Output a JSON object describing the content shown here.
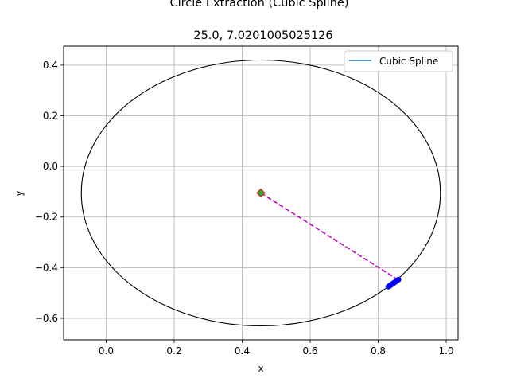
{
  "chart_data": {
    "type": "scatter",
    "title": "Circle Extraction (Cubic Spline)",
    "subtitle": "25.0, 7.0201005025126",
    "xlabel": "x",
    "ylabel": "y",
    "xlim": [
      -0.125,
      1.035
    ],
    "ylim": [
      -0.685,
      0.475
    ],
    "xticks": [
      0.0,
      0.2,
      0.4,
      0.6,
      0.8,
      1.0
    ],
    "xtick_labels": [
      "0.0",
      "0.2",
      "0.4",
      "0.6",
      "0.8",
      "1.0"
    ],
    "yticks": [
      0.4,
      0.2,
      0.0,
      -0.2,
      -0.4,
      -0.6
    ],
    "ytick_labels": [
      "0.4",
      "0.2",
      "0.0",
      "−0.2",
      "−0.4",
      "−0.6"
    ],
    "grid": true,
    "legend": {
      "placement": "upper right",
      "entries": [
        {
          "label": "Cubic Spline",
          "color": "#1f77b4"
        }
      ]
    },
    "circle": {
      "center": [
        0.455,
        -0.105
      ],
      "radius_x": 0.528,
      "radius_y": 0.525,
      "color": "#000000"
    },
    "center_marker": {
      "x": 0.455,
      "y": -0.105,
      "fill": "#2ca02c",
      "edge": "#d62728"
    },
    "dashed_line": {
      "from": [
        0.455,
        -0.105
      ],
      "to": [
        0.855,
        -0.445
      ],
      "color": "#bf00bf"
    },
    "spline_segment": {
      "from": [
        0.83,
        -0.475
      ],
      "to": [
        0.86,
        -0.447
      ],
      "color": "#0000ff"
    }
  }
}
